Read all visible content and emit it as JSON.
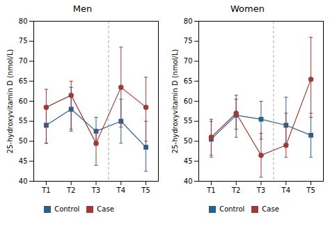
{
  "chart_data": [
    {
      "type": "line",
      "title": "Men",
      "y_label": "25-hydroxyvitamin D (nmol/L)",
      "x": [
        1,
        2,
        3,
        4,
        5
      ],
      "xlim": [
        0.5,
        5.5
      ],
      "xticks": [
        {
          "value": 1,
          "label": "T1"
        },
        {
          "value": 2,
          "label": "T2"
        },
        {
          "value": 3,
          "label": "T3"
        },
        {
          "value": 4,
          "label": "T4"
        },
        {
          "value": 5,
          "label": "T5"
        }
      ],
      "ylim": [
        40,
        80
      ],
      "yticks": [
        40,
        45,
        50,
        55,
        60,
        65,
        70,
        75,
        80
      ],
      "vlines": [
        3.5
      ],
      "grid": false,
      "legend": "bottom",
      "series": [
        {
          "name": "Control",
          "color": "#2c5f8a",
          "marker": "square",
          "values": [
            54.0,
            58.0,
            52.5,
            55.0,
            48.5
          ],
          "error_low": [
            4.5,
            5.5,
            3.5,
            5.5,
            6.0
          ],
          "error_high": [
            4.5,
            5.5,
            3.5,
            5.5,
            6.5
          ]
        },
        {
          "name": "Case",
          "color": "#9e3a3a",
          "marker": "circle",
          "values": [
            58.5,
            61.5,
            49.5,
            63.5,
            58.5
          ],
          "error_low": [
            9.0,
            8.5,
            5.5,
            10.0,
            8.5
          ],
          "error_high": [
            4.5,
            3.5,
            3.0,
            10.0,
            7.5
          ]
        }
      ]
    },
    {
      "type": "line",
      "title": "Women",
      "y_label": "25-hydroxyvitamin D (nmol/L)",
      "x": [
        1,
        2,
        3,
        4,
        5
      ],
      "xlim": [
        0.5,
        5.5
      ],
      "xticks": [
        {
          "value": 1,
          "label": "T1"
        },
        {
          "value": 2,
          "label": "T2"
        },
        {
          "value": 3,
          "label": "T3"
        },
        {
          "value": 4,
          "label": "T4"
        },
        {
          "value": 5,
          "label": "T5"
        }
      ],
      "ylim": [
        40,
        80
      ],
      "yticks": [
        40,
        45,
        50,
        55,
        60,
        65,
        70,
        75,
        80
      ],
      "vlines": [
        3.5
      ],
      "grid": false,
      "legend": "bottom",
      "series": [
        {
          "name": "Control",
          "color": "#2c5f8a",
          "marker": "square",
          "values": [
            50.5,
            56.5,
            55.5,
            54.0,
            51.5
          ],
          "error_low": [
            4.5,
            5.5,
            5.0,
            5.5,
            5.5
          ],
          "error_high": [
            4.5,
            5.0,
            4.5,
            7.0,
            5.5
          ]
        },
        {
          "name": "Case",
          "color": "#9e3a3a",
          "marker": "circle",
          "values": [
            51.0,
            57.0,
            46.5,
            49.0,
            65.5
          ],
          "error_low": [
            4.5,
            4.0,
            5.5,
            3.0,
            9.5
          ],
          "error_high": [
            4.5,
            3.5,
            5.5,
            8.0,
            10.5
          ]
        }
      ]
    }
  ]
}
